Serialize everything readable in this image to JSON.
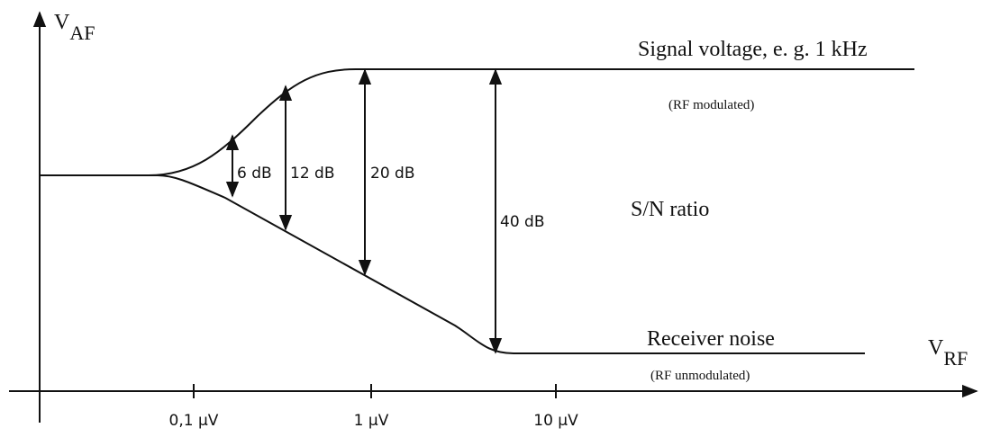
{
  "axes": {
    "y_label": {
      "main": "V",
      "sub": "AF"
    },
    "x_label": {
      "main": "V",
      "sub": "RF"
    }
  },
  "x_ticks": [
    "0,1 µV",
    "1 µV",
    "10 µV"
  ],
  "curves": {
    "signal": {
      "label": "Signal voltage, e. g. 1 kHz",
      "note": "(RF modulated)"
    },
    "noise": {
      "label": "Receiver noise",
      "note": "(RF unmodulated)"
    }
  },
  "levels": [
    "6 dB",
    "12 dB",
    "20 dB",
    "40 dB"
  ],
  "region_label": "S/N ratio"
}
